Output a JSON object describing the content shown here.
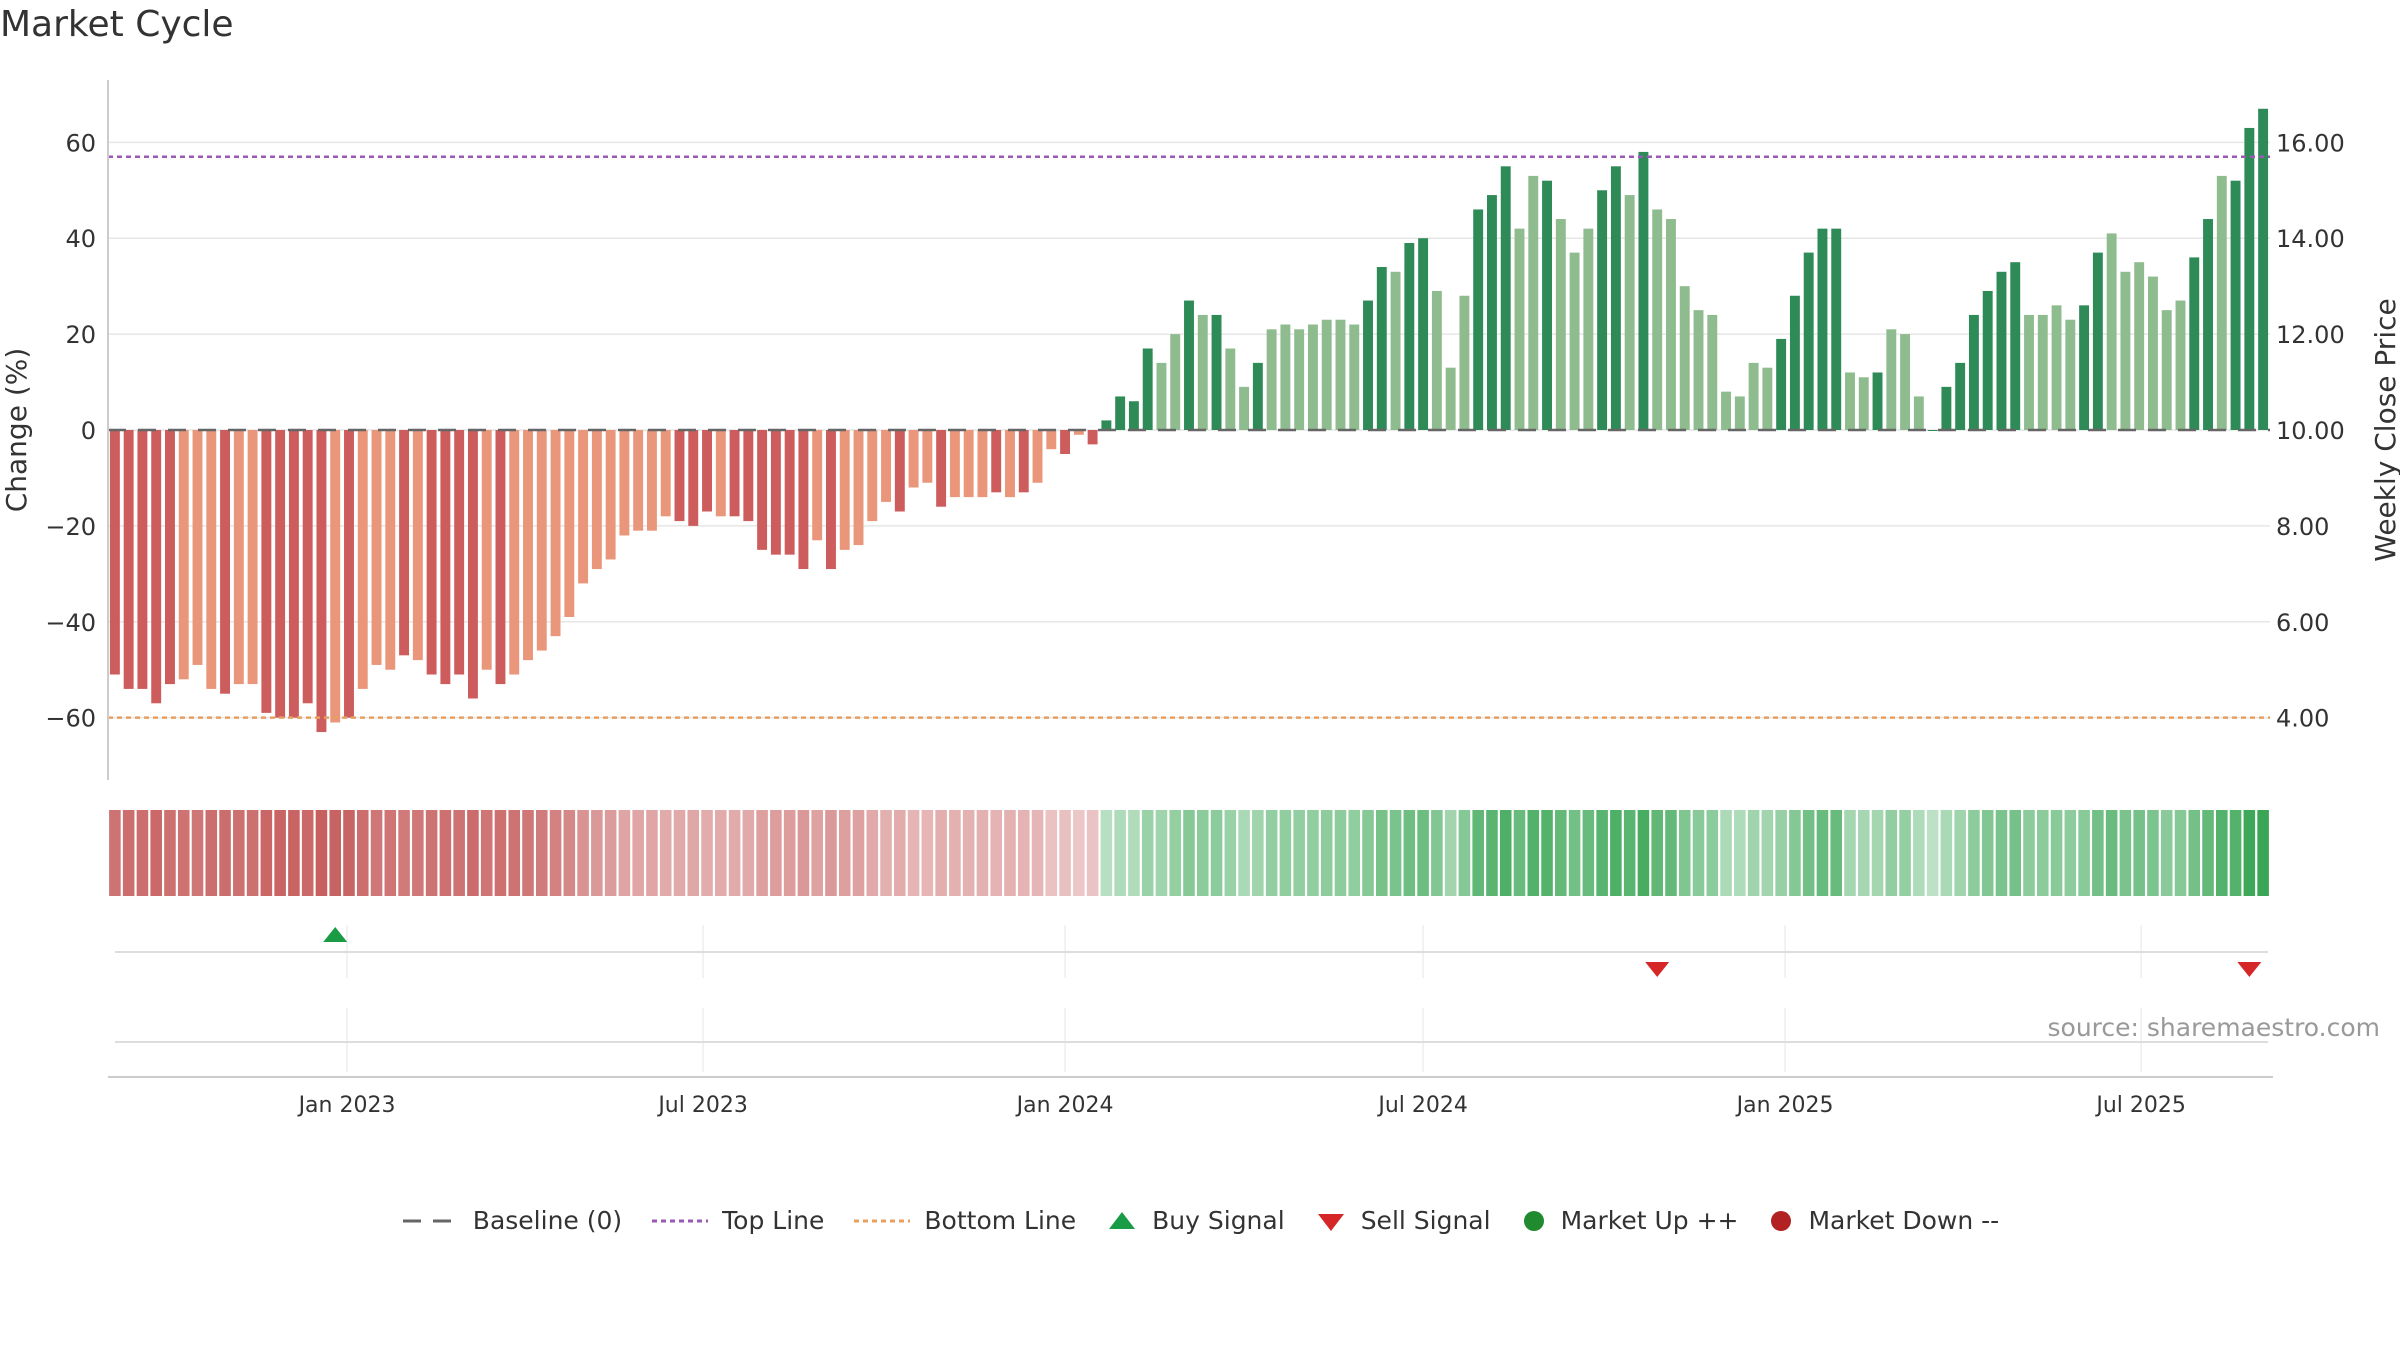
{
  "title": "Market Cycle",
  "source_text": "source: sharemaestro.com",
  "legend": {
    "baseline": "Baseline (0)",
    "top_line": "Top Line",
    "bottom_line": "Bottom Line",
    "buy_signal": "Buy Signal",
    "sell_signal": "Sell Signal",
    "market_up": "Market Up ++",
    "market_down": "Market Down --"
  },
  "colors": {
    "down_strong": "#cd5c5c",
    "down_light": "#e9967a",
    "up_strong": "#2e8b57",
    "up_light": "#8fbc8f",
    "top_line": "#9b59b6",
    "bottom_line": "#e8a060",
    "buy": "#1a9b45",
    "sell": "#d62728",
    "market_up": "#1f8a2e",
    "market_down": "#b22222"
  },
  "chart_data": {
    "type": "bar",
    "ylabel": "Change (%)",
    "ylabel_right": "Weekly Close Price",
    "ylim": [
      -73,
      73
    ],
    "y_ticks": [
      60,
      40,
      20,
      0,
      -20,
      -40,
      -60
    ],
    "y_tick_labels": [
      "60",
      "40",
      "20",
      "0",
      "−20",
      "−40",
      "−60"
    ],
    "right_ticks": [
      "16.00",
      "14.00",
      "12.00",
      "10.00",
      "8.00",
      "6.00",
      "4.00"
    ],
    "top_line": 57,
    "bottom_line": -60,
    "baseline": 0,
    "x_tick_labels": [
      "Jan 2023",
      "Jul 2023",
      "Jan 2024",
      "Jul 2024",
      "Jan 2025",
      "Jul 2025"
    ],
    "start_week": "2022-09-05",
    "week_count": 157,
    "values": [
      -51,
      -54,
      -54,
      -57,
      -53,
      -52,
      -49,
      -54,
      -55,
      -53,
      -53,
      -59,
      -60,
      -60,
      -57,
      -63,
      -61,
      -60,
      -54,
      -49,
      -50,
      -47,
      -48,
      -51,
      -53,
      -51,
      -56,
      -50,
      -53,
      -51,
      -48,
      -46,
      -43,
      -39,
      -32,
      -29,
      -27,
      -22,
      -21,
      -21,
      -18,
      -19,
      -20,
      -17,
      -18,
      -18,
      -19,
      -25,
      -26,
      -26,
      -29,
      -23,
      -29,
      -25,
      -24,
      -19,
      -15,
      -17,
      -12,
      -11,
      -16,
      -14,
      -14,
      -14,
      -13,
      -14,
      -13,
      -11,
      -4,
      -5,
      -1,
      -3,
      2,
      7,
      6,
      17,
      14,
      20,
      27,
      24,
      24,
      17,
      9,
      14,
      21,
      22,
      21,
      22,
      23,
      23,
      22,
      27,
      34,
      33,
      39,
      40,
      29,
      13,
      28,
      46,
      49,
      55,
      42,
      53,
      52,
      44,
      37,
      42,
      50,
      55,
      49,
      58,
      46,
      44,
      30,
      25,
      24,
      8,
      7,
      14,
      13,
      19,
      28,
      37,
      42,
      42,
      12,
      11,
      12,
      21,
      20,
      7,
      0,
      9,
      14,
      24,
      29,
      33,
      35,
      24,
      24,
      26,
      23,
      26,
      37,
      41,
      33,
      35,
      32,
      25,
      27,
      36,
      44,
      53,
      52,
      63,
      67
    ],
    "light_indices": [
      5,
      6,
      7,
      9,
      10,
      16,
      18,
      19,
      20,
      22,
      27,
      29,
      30,
      31,
      32,
      33,
      34,
      35,
      36,
      37,
      38,
      39,
      40,
      44,
      51,
      53,
      54,
      55,
      56,
      58,
      59,
      61,
      62,
      63,
      65,
      67,
      68,
      70,
      76,
      77,
      79,
      81,
      82,
      84,
      85,
      86,
      87,
      88,
      89,
      90,
      93,
      96,
      97,
      98,
      102,
      103,
      105,
      106,
      107,
      110,
      112,
      113,
      114,
      115,
      116,
      117,
      118,
      119,
      120,
      126,
      127,
      129,
      130,
      131,
      139,
      140,
      141,
      142,
      145,
      146,
      147,
      148,
      149,
      150,
      153
    ],
    "buy_signals": [
      "2022-12-26"
    ],
    "sell_signals": [
      "2024-10-28",
      "2025-08-25"
    ]
  }
}
